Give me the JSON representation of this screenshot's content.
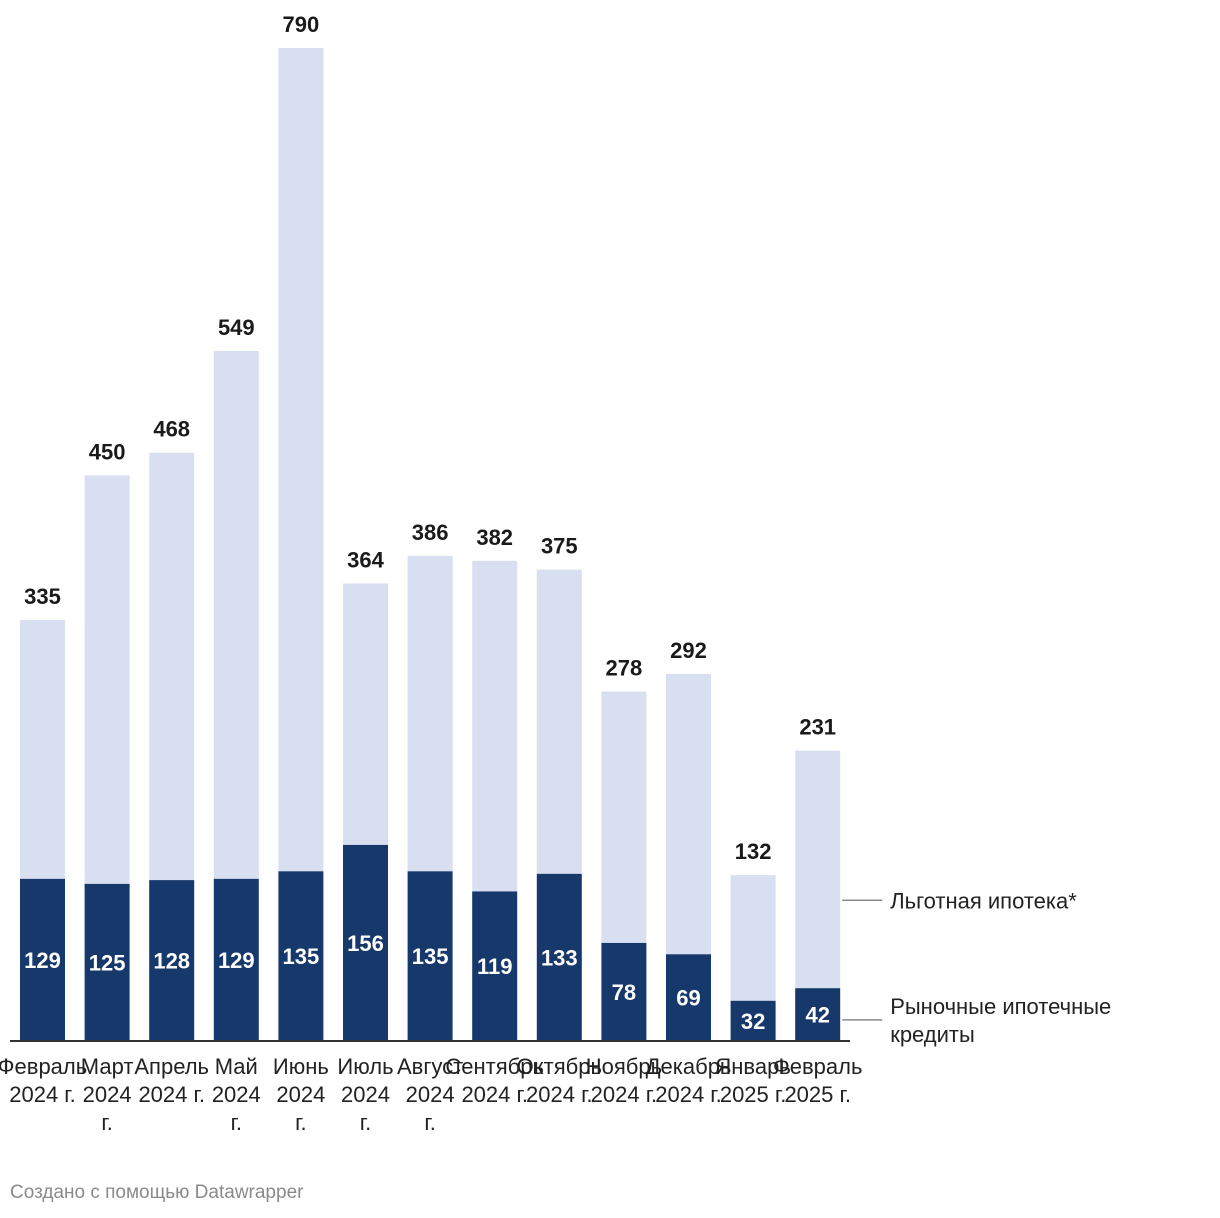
{
  "chart_data": {
    "type": "bar",
    "stacked": true,
    "categories": [
      [
        "Февраль",
        "2024 г."
      ],
      [
        "Март",
        "2024",
        "г."
      ],
      [
        "Апрель",
        "2024 г."
      ],
      [
        "Май",
        "2024",
        "г."
      ],
      [
        "Июнь",
        "2024",
        "г."
      ],
      [
        "Июль",
        "2024",
        "г."
      ],
      [
        "Август",
        "2024",
        "г."
      ],
      [
        "Сентябрь",
        "2024 г."
      ],
      [
        "Октябрь",
        "2024 г."
      ],
      [
        "Ноябрь",
        "2024 г."
      ],
      [
        "Декабрь",
        "2024 г."
      ],
      [
        "Январь",
        "2025 г."
      ],
      [
        "Февраль",
        "2025 г."
      ]
    ],
    "series": [
      {
        "name": "Рыночные ипотечные кредиты",
        "legend_lines": [
          "Рыночные ипотечные",
          "кредиты"
        ],
        "color": "#17386b",
        "values": [
          129,
          125,
          128,
          129,
          135,
          156,
          135,
          119,
          133,
          78,
          69,
          32,
          42
        ]
      },
      {
        "name": "Льготная ипотека*",
        "legend_lines": [
          "Льготная ипотека*"
        ],
        "color": "#d8dff0",
        "values": [
          206,
          325,
          340,
          420,
          655,
          208,
          251,
          263,
          242,
          200,
          223,
          100,
          189
        ]
      }
    ],
    "totals": [
      335,
      450,
      468,
      549,
      790,
      364,
      386,
      382,
      375,
      278,
      292,
      132,
      231
    ],
    "ylim": [
      0,
      790
    ],
    "grid": false,
    "title": "",
    "xlabel": "",
    "ylabel": ""
  },
  "footer": {
    "credit": "Создано с помощью Datawrapper"
  }
}
